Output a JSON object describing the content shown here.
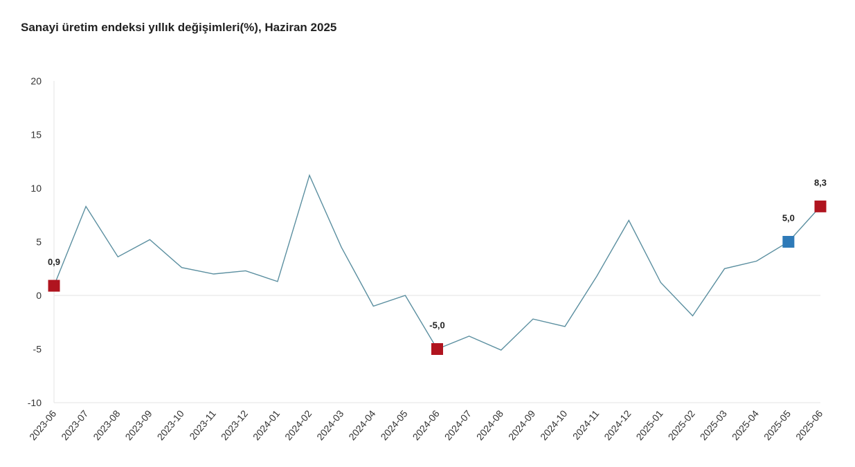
{
  "chart_data": {
    "type": "line",
    "title": "Sanayi üretim endeksi yıllık değişimleri(%), Haziran 2025",
    "xlabel": "",
    "ylabel": "",
    "ylim": [
      -10,
      20
    ],
    "yticks": [
      "20",
      "15",
      "10",
      "5",
      "0",
      "-5",
      "-10"
    ],
    "ytick_values": [
      20,
      15,
      10,
      5,
      0,
      -5,
      -10
    ],
    "categories": [
      "2023-06",
      "2023-07",
      "2023-08",
      "2023-09",
      "2023-10",
      "2023-11",
      "2023-12",
      "2024-01",
      "2024-02",
      "2024-03",
      "2024-04",
      "2024-05",
      "2024-06",
      "2024-07",
      "2024-08",
      "2024-09",
      "2024-10",
      "2024-11",
      "2024-12",
      "2025-01",
      "2025-02",
      "2025-03",
      "2025-04",
      "2025-05",
      "2025-06"
    ],
    "series": [
      {
        "values": [
          0.9,
          8.3,
          3.6,
          5.2,
          2.6,
          2.0,
          2.3,
          1.3,
          11.2,
          4.5,
          -1.0,
          0.0,
          -5.0,
          -3.8,
          -5.1,
          -2.2,
          -2.9,
          1.8,
          7.0,
          1.2,
          -1.9,
          2.5,
          3.2,
          5.0,
          8.3
        ],
        "color": "#5b8fa0"
      }
    ],
    "highlighted_points": [
      {
        "index": 0,
        "label": "0,9",
        "color": "#b0141f"
      },
      {
        "index": 12,
        "label": "-5,0",
        "color": "#b0141f"
      },
      {
        "index": 23,
        "label": "5,0",
        "color": "#2e7ab8"
      },
      {
        "index": 24,
        "label": "8,3",
        "color": "#b0141f"
      }
    ],
    "grid": false,
    "zero_line": true
  }
}
